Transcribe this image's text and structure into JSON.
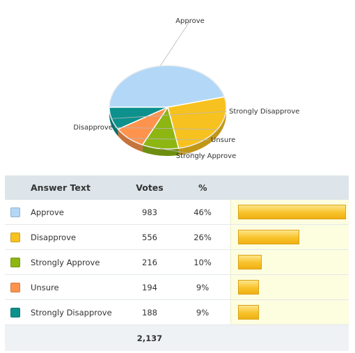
{
  "chart_data": {
    "type": "pie",
    "categories": [
      "Approve",
      "Disapprove",
      "Strongly Approve",
      "Unsure",
      "Strongly Disapprove"
    ],
    "values": [
      983,
      556,
      216,
      194,
      188
    ],
    "colors": [
      "#b3d8f7",
      "#f7c21f",
      "#8db613",
      "#fe934e",
      "#0d918d"
    ]
  },
  "table": {
    "headers": {
      "answer": "Answer Text",
      "votes": "Votes",
      "pct": "%"
    },
    "rows": [
      {
        "answer": "Approve",
        "votes": "983",
        "pct": "46%",
        "fraction": 0.46,
        "color": "#b3d8f7"
      },
      {
        "answer": "Disapprove",
        "votes": "556",
        "pct": "26%",
        "fraction": 0.26,
        "color": "#f7c21f"
      },
      {
        "answer": "Strongly Approve",
        "votes": "216",
        "pct": "10%",
        "fraction": 0.1,
        "color": "#8db613"
      },
      {
        "answer": "Unsure",
        "votes": "194",
        "pct": "9%",
        "fraction": 0.09,
        "color": "#fe934e"
      },
      {
        "answer": "Strongly Disapprove",
        "votes": "188",
        "pct": "9%",
        "fraction": 0.09,
        "color": "#0d918d"
      }
    ],
    "total": "2,137"
  }
}
